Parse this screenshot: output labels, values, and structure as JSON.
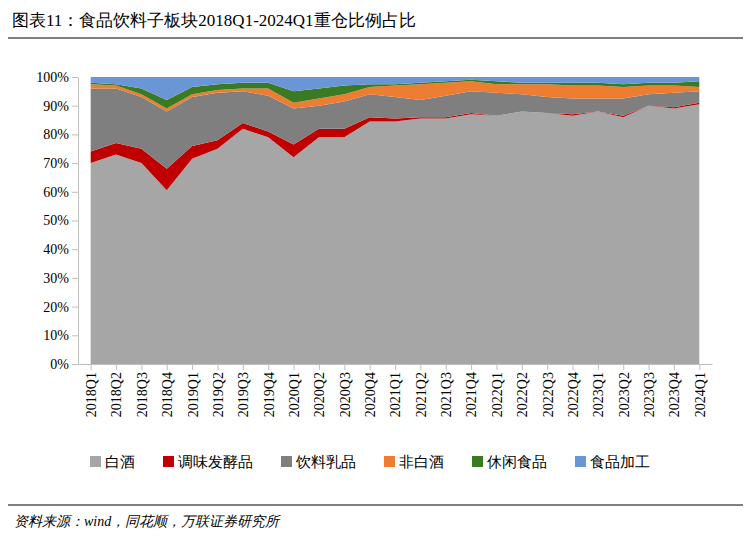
{
  "chart_data": {
    "type": "area",
    "title": "图表11：食品饮料子板块2018Q1-2024Q1重仓比例占比",
    "source": "资料来源：wind，同花顺，万联证券研究所",
    "stacked": true,
    "legend": "bottom",
    "categories": [
      "2018Q1",
      "2018Q2",
      "2018Q3",
      "2018Q4",
      "2019Q1",
      "2019Q2",
      "2019Q3",
      "2019Q4",
      "2020Q1",
      "2020Q2",
      "2020Q3",
      "2020Q4",
      "2021Q1",
      "2021Q2",
      "2021Q3",
      "2021Q4",
      "2022Q1",
      "2022Q2",
      "2022Q3",
      "2022Q4",
      "2023Q1",
      "2023Q2",
      "2023Q3",
      "2023Q4",
      "2024Q1"
    ],
    "series": [
      {
        "name": "白酒",
        "color": "#a6a6a6",
        "values": [
          70,
          73,
          70,
          60.5,
          71.5,
          75,
          82,
          79,
          72,
          79,
          79,
          84.5,
          84.5,
          85.5,
          85.5,
          87,
          86.5,
          88,
          87.5,
          86.5,
          88,
          86,
          90,
          89,
          90.5
        ]
      },
      {
        "name": "调味发酵品",
        "color": "#c00000",
        "values": [
          4,
          4,
          5,
          7.5,
          4.5,
          3,
          2,
          2,
          4.5,
          3,
          3,
          1.5,
          1,
          0.5,
          0.5,
          0.5,
          0,
          0,
          0,
          0.5,
          0,
          0.5,
          0,
          0.5,
          0.5
        ]
      },
      {
        "name": "饮料乳品",
        "color": "#7f7f7f",
        "values": [
          22,
          19,
          18,
          20,
          17,
          16.5,
          11,
          12.5,
          12.5,
          8,
          9.5,
          8,
          7.5,
          6,
          7.5,
          7.5,
          8,
          6,
          5.5,
          5.5,
          4.5,
          6,
          4,
          5,
          4
        ]
      },
      {
        "name": "非白酒",
        "color": "#ed7d31",
        "values": [
          1.5,
          1,
          1,
          1,
          1,
          1,
          1,
          2.5,
          2,
          2.5,
          2.5,
          2.5,
          4,
          5.5,
          4.5,
          3.5,
          3,
          3.5,
          4.5,
          4.5,
          4.5,
          4,
          3,
          2.5,
          1.5
        ]
      },
      {
        "name": "休闲食品",
        "color": "#3a7a23",
        "values": [
          0.5,
          0.5,
          2,
          3,
          2.5,
          2,
          2,
          2,
          4,
          3.5,
          3,
          1,
          0.5,
          0.5,
          0.5,
          0.5,
          1,
          0.5,
          0.5,
          1,
          1,
          1,
          1,
          1,
          2
        ]
      },
      {
        "name": "食品加工",
        "color": "#6a96d6",
        "values": [
          2,
          2.5,
          4,
          8,
          3.5,
          2.5,
          2,
          2,
          5,
          4,
          3,
          2.5,
          2.5,
          2,
          1.5,
          1,
          1.5,
          2,
          2,
          2,
          2,
          2.5,
          2,
          2,
          1.5
        ]
      }
    ],
    "ylim": [
      0,
      100
    ],
    "yticks": [
      {
        "value": 0,
        "label": "0%"
      },
      {
        "value": 10,
        "label": "10%"
      },
      {
        "value": 20,
        "label": "20%"
      },
      {
        "value": 30,
        "label": "30%"
      },
      {
        "value": 40,
        "label": "40%"
      },
      {
        "value": 50,
        "label": "50%"
      },
      {
        "value": 60,
        "label": "60%"
      },
      {
        "value": 70,
        "label": "70%"
      },
      {
        "value": 80,
        "label": "80%"
      },
      {
        "value": 90,
        "label": "90%"
      },
      {
        "value": 100,
        "label": "100%"
      }
    ],
    "grid": false
  }
}
